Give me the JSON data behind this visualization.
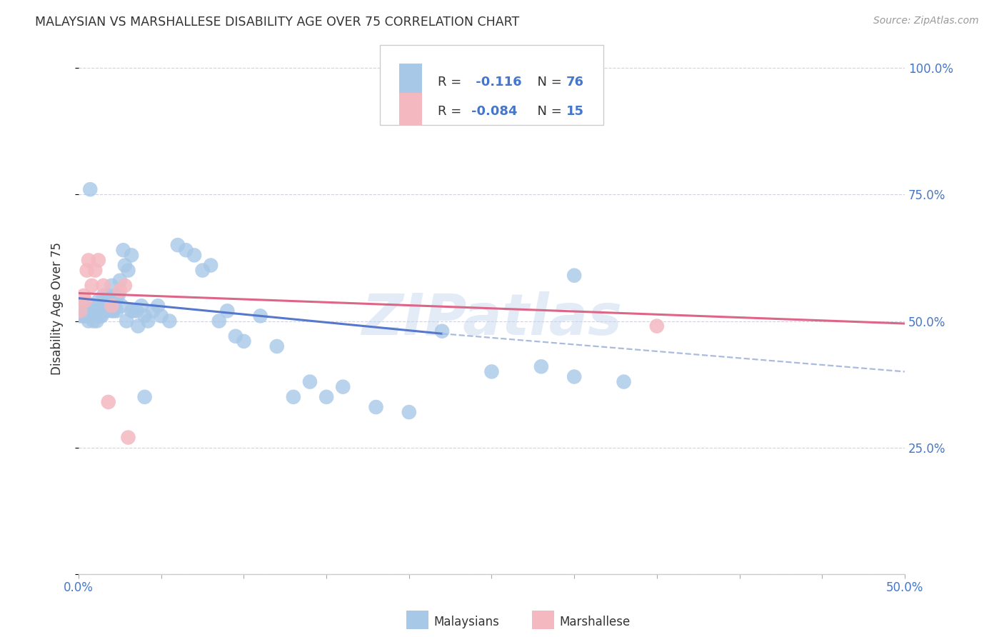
{
  "title": "MALAYSIAN VS MARSHALLESE DISABILITY AGE OVER 75 CORRELATION CHART",
  "source": "Source: ZipAtlas.com",
  "ylabel": "Disability Age Over 75",
  "legend_bottom_1": "Malaysians",
  "legend_bottom_2": "Marshallese",
  "blue_color": "#a8c8e8",
  "pink_color": "#f4b8c0",
  "blue_line": "#5577cc",
  "pink_line": "#dd6688",
  "dashed_line": "#aabbdd",
  "text_blue": "#4477cc",
  "text_dark": "#333333",
  "background": "#ffffff",
  "grid_color": "#ccccdd",
  "watermark": "ZIPatlas",
  "xlim": [
    0.0,
    0.5
  ],
  "ylim": [
    0.0,
    1.05
  ],
  "malaysian_x": [
    0.001,
    0.002,
    0.003,
    0.004,
    0.005,
    0.006,
    0.007,
    0.008,
    0.009,
    0.01,
    0.011,
    0.012,
    0.013,
    0.014,
    0.015,
    0.016,
    0.017,
    0.018,
    0.019,
    0.02,
    0.021,
    0.022,
    0.023,
    0.024,
    0.025,
    0.027,
    0.028,
    0.03,
    0.032,
    0.033,
    0.035,
    0.038,
    0.04,
    0.042,
    0.045,
    0.048,
    0.05,
    0.055,
    0.06,
    0.065,
    0.07,
    0.075,
    0.08,
    0.085,
    0.09,
    0.095,
    0.1,
    0.11,
    0.12,
    0.13,
    0.14,
    0.15,
    0.16,
    0.18,
    0.2,
    0.22,
    0.25,
    0.28,
    0.3,
    0.33,
    0.003,
    0.005,
    0.007,
    0.009,
    0.011,
    0.013,
    0.015,
    0.018,
    0.02,
    0.023,
    0.026,
    0.029,
    0.032,
    0.036,
    0.04,
    0.3
  ],
  "malaysian_y": [
    0.51,
    0.52,
    0.53,
    0.51,
    0.52,
    0.5,
    0.52,
    0.51,
    0.53,
    0.52,
    0.5,
    0.54,
    0.52,
    0.51,
    0.55,
    0.53,
    0.52,
    0.55,
    0.54,
    0.57,
    0.52,
    0.53,
    0.52,
    0.55,
    0.58,
    0.64,
    0.61,
    0.6,
    0.63,
    0.52,
    0.52,
    0.53,
    0.51,
    0.5,
    0.52,
    0.53,
    0.51,
    0.5,
    0.65,
    0.64,
    0.63,
    0.6,
    0.61,
    0.5,
    0.52,
    0.47,
    0.46,
    0.51,
    0.45,
    0.35,
    0.38,
    0.35,
    0.37,
    0.33,
    0.32,
    0.48,
    0.4,
    0.41,
    0.39,
    0.38,
    0.51,
    0.52,
    0.76,
    0.5,
    0.52,
    0.51,
    0.53,
    0.54,
    0.52,
    0.55,
    0.53,
    0.5,
    0.52,
    0.49,
    0.35,
    0.59
  ],
  "marshallese_x": [
    0.001,
    0.003,
    0.004,
    0.005,
    0.006,
    0.008,
    0.01,
    0.012,
    0.015,
    0.018,
    0.02,
    0.025,
    0.028,
    0.03,
    0.35
  ],
  "marshallese_y": [
    0.52,
    0.55,
    0.54,
    0.6,
    0.62,
    0.57,
    0.6,
    0.62,
    0.57,
    0.34,
    0.53,
    0.56,
    0.57,
    0.27,
    0.49
  ],
  "malaysian_trend_x": [
    0.0,
    0.22
  ],
  "malaysian_trend_y": [
    0.545,
    0.475
  ],
  "marshallese_trend_x": [
    0.0,
    0.5
  ],
  "marshallese_trend_y": [
    0.555,
    0.495
  ],
  "dashed_trend_x": [
    0.22,
    0.5
  ],
  "dashed_trend_y": [
    0.475,
    0.4
  ],
  "xtick_positions": [
    0.0,
    0.05,
    0.1,
    0.15,
    0.2,
    0.25,
    0.3,
    0.35,
    0.4,
    0.45,
    0.5
  ],
  "ytick_positions": [
    0.0,
    0.25,
    0.5,
    0.75,
    1.0
  ]
}
